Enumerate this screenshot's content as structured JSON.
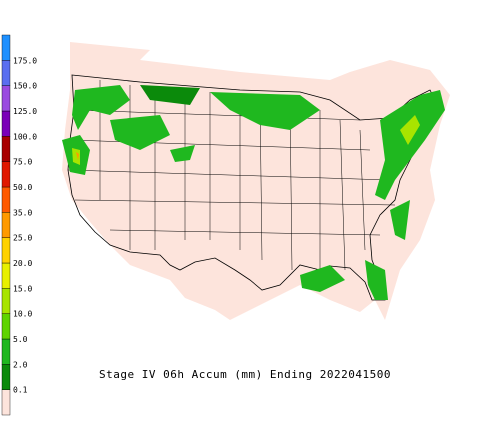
{
  "title": "Stage IV 06h Accum (mm) Ending 2022041500",
  "colorbar": {
    "labels": [
      "0.1",
      "2.0",
      "5.0",
      "10.0",
      "15.0",
      "20.0",
      "25.0",
      "35.0",
      "50.0",
      "75.0",
      "100.0",
      "125.0",
      "150.0",
      "175.0"
    ],
    "colors": [
      "#fde4dc",
      "#0b8a0b",
      "#1fb81f",
      "#5fd400",
      "#a8e400",
      "#e8f000",
      "#ffd200",
      "#ff9a00",
      "#ff5a00",
      "#e01800",
      "#a80000",
      "#7a00b8",
      "#9a4ae0",
      "#5a6ef0",
      "#1e90ff"
    ]
  }
}
